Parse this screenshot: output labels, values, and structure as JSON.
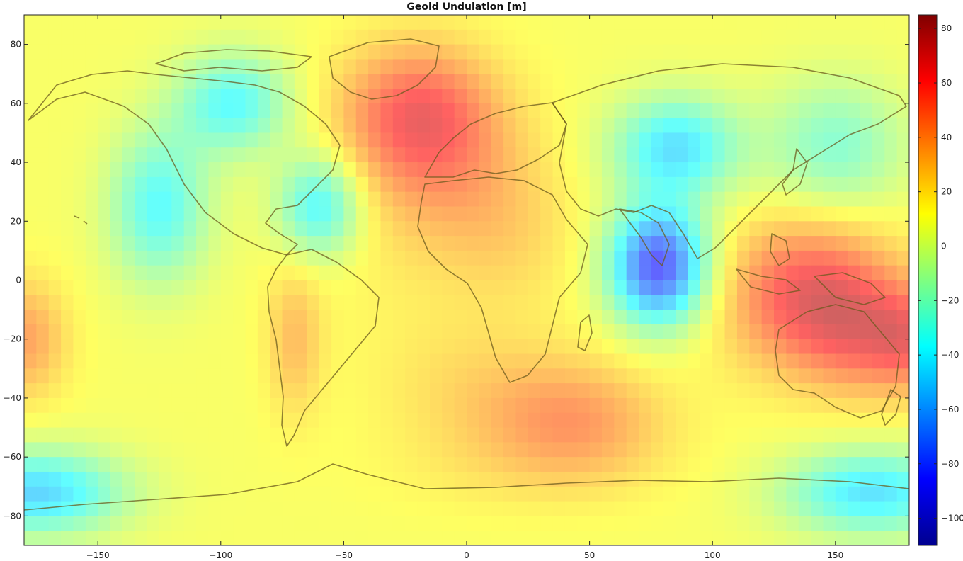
{
  "chart_data": {
    "type": "heatmap",
    "title": "Geoid Undulation [m]",
    "xlabel": "",
    "ylabel": "",
    "xlim": [
      -180,
      180
    ],
    "ylim": [
      -90,
      90
    ],
    "x_ticks": [
      -150,
      -100,
      -50,
      0,
      50,
      100,
      150
    ],
    "y_ticks": [
      80,
      60,
      40,
      20,
      0,
      -20,
      -40,
      -60,
      -80
    ],
    "x_tick_labels": [
      "−150",
      "−100",
      "−50",
      "0",
      "50",
      "100",
      "150"
    ],
    "y_tick_labels": [
      "80",
      "60",
      "40",
      "20",
      "0",
      "−20",
      "−40",
      "−60",
      "−80"
    ],
    "colorbar": {
      "range": [
        -110,
        85
      ],
      "ticks": [
        80,
        60,
        40,
        20,
        0,
        -20,
        -40,
        -60,
        -80,
        -100
      ],
      "tick_labels": [
        "80",
        "60",
        "40",
        "20",
        "0",
        "−20",
        "−40",
        "−60",
        "−80",
        "−100"
      ],
      "colormap": "jet"
    },
    "background_value": 10,
    "field_features": [
      {
        "lon": -20,
        "lat": 58,
        "value": 62,
        "sx": 22,
        "sy": 16
      },
      {
        "lon": -10,
        "lat": 38,
        "value": 35,
        "sx": 25,
        "sy": 18
      },
      {
        "lon": -32,
        "lat": 10,
        "value": 15,
        "sx": 25,
        "sy": 25
      },
      {
        "lon": 15,
        "lat": 15,
        "value": 25,
        "sx": 22,
        "sy": 18
      },
      {
        "lon": 45,
        "lat": -48,
        "value": 45,
        "sx": 25,
        "sy": 14
      },
      {
        "lon": 5,
        "lat": -38,
        "value": 25,
        "sx": 28,
        "sy": 18
      },
      {
        "lon": 140,
        "lat": -5,
        "value": 75,
        "sx": 24,
        "sy": 18
      },
      {
        "lon": 165,
        "lat": -20,
        "value": 45,
        "sx": 18,
        "sy": 14
      },
      {
        "lon": -180,
        "lat": -20,
        "value": 45,
        "sx": 12,
        "sy": 14
      },
      {
        "lon": 180,
        "lat": -20,
        "value": 40,
        "sx": 10,
        "sy": 12
      },
      {
        "lon": -70,
        "lat": -20,
        "value": 35,
        "sx": 8,
        "sy": 18
      },
      {
        "lon": 78,
        "lat": 5,
        "value": -105,
        "sx": 14,
        "sy": 14
      },
      {
        "lon": 85,
        "lat": 45,
        "value": -55,
        "sx": 18,
        "sy": 12
      },
      {
        "lon": -95,
        "lat": 60,
        "value": -45,
        "sx": 16,
        "sy": 12
      },
      {
        "lon": -125,
        "lat": 25,
        "value": -45,
        "sx": 14,
        "sy": 18
      },
      {
        "lon": -60,
        "lat": 25,
        "value": -50,
        "sx": 12,
        "sy": 12
      },
      {
        "lon": -175,
        "lat": -72,
        "value": -60,
        "sx": 25,
        "sy": 10
      },
      {
        "lon": 165,
        "lat": -72,
        "value": -55,
        "sx": 25,
        "sy": 10
      },
      {
        "lon": 150,
        "lat": 45,
        "value": -30,
        "sx": 20,
        "sy": 16
      },
      {
        "lon": 20,
        "lat": -65,
        "value": 15,
        "sx": 40,
        "sy": 10
      }
    ]
  }
}
